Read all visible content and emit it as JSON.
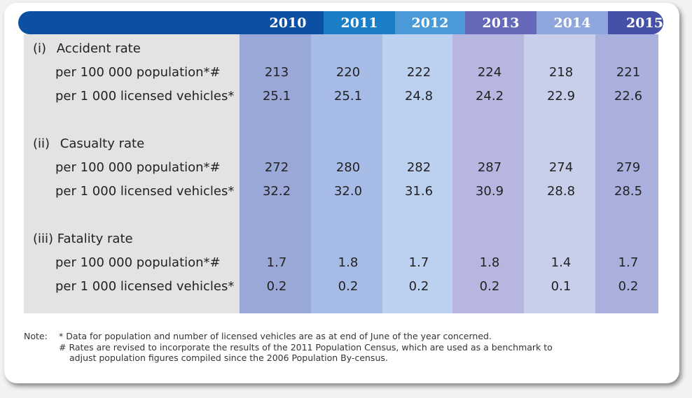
{
  "years": [
    "2010",
    "2011",
    "2012",
    "2013",
    "2014",
    "2015"
  ],
  "sections": [
    {
      "title": "(i)  Accident rate",
      "rows": [
        {
          "label": "per 100 000 population*#",
          "values": [
            "213",
            "220",
            "222",
            "224",
            "218",
            "221"
          ]
        },
        {
          "label": "per 1 000 licensed vehicles*",
          "values": [
            "25.1",
            "25.1",
            "24.8",
            "24.2",
            "22.9",
            "22.6"
          ]
        }
      ]
    },
    {
      "title": "(ii)  Casualty rate",
      "rows": [
        {
          "label": "per 100 000 population*#",
          "values": [
            "272",
            "280",
            "282",
            "287",
            "274",
            "279"
          ]
        },
        {
          "label": "per 1 000 licensed vehicles*",
          "values": [
            "32.2",
            "32.0",
            "31.6",
            "30.9",
            "28.8",
            "28.5"
          ]
        }
      ]
    },
    {
      "title": "(iii) Fatality rate",
      "rows": [
        {
          "label": "per 100 000 population*#",
          "values": [
            "1.7",
            "1.8",
            "1.7",
            "1.8",
            "1.4",
            "1.7"
          ]
        },
        {
          "label": "per 1 000 licensed vehicles*",
          "values": [
            "0.2",
            "0.2",
            "0.2",
            "0.2",
            "0.1",
            "0.2"
          ]
        }
      ]
    }
  ],
  "note": {
    "prefix": "Note:",
    "line1": "*  Data for population and number of licensed vehicles are as at end of June of the year concerned.",
    "line2": "#  Rates are revised to incorporate the results of the 2011 Population Census, which are used as a benchmark to",
    "line3": "adjust population figures compiled since the 2006 Population By-census."
  },
  "colors": {
    "header": [
      "#0d4fa3",
      "#1b7fc8",
      "#4b9ad8",
      "#6568b8",
      "#8fa6dc",
      "#4551a7"
    ],
    "columns": [
      "#9aa8d8",
      "#a6bbe6",
      "#bcd0f0",
      "#b7b6e0",
      "#c8cfea",
      "#aab0de"
    ],
    "label_panel": "#e3e3e3"
  }
}
